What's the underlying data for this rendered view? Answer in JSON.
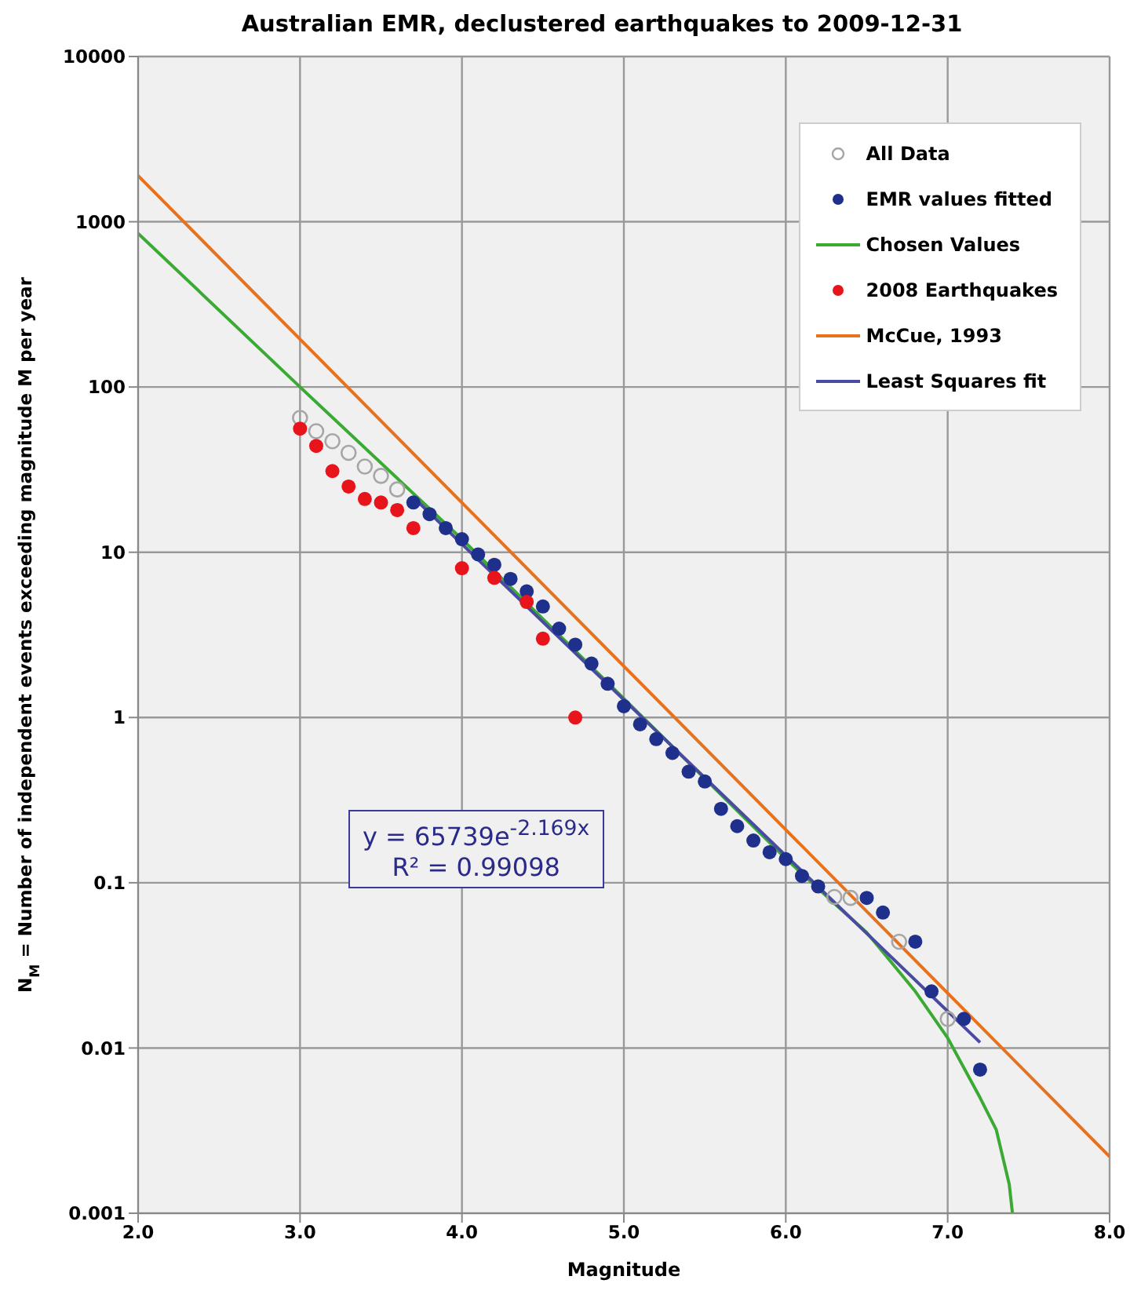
{
  "chart_data": {
    "type": "scatter",
    "title": "Australian EMR, declustered earthquakes to 2009-12-31",
    "xlabel": "Magnitude",
    "ylabel": "N$_{M}$ = Number of independent events exceeding magnitude M per year",
    "log": "y",
    "grid": true,
    "legend": "top right",
    "xlim": [
      2,
      8
    ],
    "xticks": [
      {
        "value": 2,
        "label": "2.0"
      },
      {
        "value": 3,
        "label": "3.0"
      },
      {
        "value": 4,
        "label": "4.0"
      },
      {
        "value": 5,
        "label": "5.0"
      },
      {
        "value": 6,
        "label": "6.0"
      },
      {
        "value": 7,
        "label": "7.0"
      },
      {
        "value": 8,
        "label": "8.0"
      }
    ],
    "ylim": [
      0.001,
      10000
    ],
    "yticks": [
      0.001,
      0.01,
      0.1,
      1,
      10,
      100,
      1000,
      10000
    ],
    "annotations": [
      "y = 65739e$^{-2.169x}$",
      "R² = 0.99098"
    ],
    "series": [
      {
        "name": "All Data",
        "marker": "circle",
        "color": "#a6a6a6",
        "x": [
          3.0,
          3.1,
          3.2,
          3.3,
          3.4,
          3.5,
          3.6,
          6.3,
          6.4,
          6.7,
          7.0
        ],
        "values": [
          65,
          54,
          47,
          40,
          33,
          29,
          24,
          0.082,
          0.081,
          0.044,
          0.015
        ]
      },
      {
        "name": "EMR values fitted",
        "marker": "circle",
        "color": "#1f2f8c",
        "x": [
          3.7,
          3.8,
          3.9,
          4.0,
          4.1,
          4.2,
          4.3,
          4.4,
          4.5,
          4.6,
          4.7,
          4.8,
          4.9,
          5.0,
          5.1,
          5.2,
          5.3,
          5.4,
          5.5,
          5.6,
          5.7,
          5.8,
          5.9,
          6.0,
          6.1,
          6.2,
          6.5,
          6.6,
          6.8,
          6.9,
          7.1,
          7.2
        ],
        "values": [
          20,
          17,
          14,
          12,
          9.7,
          8.4,
          6.9,
          5.8,
          4.7,
          3.45,
          2.76,
          2.12,
          1.6,
          1.17,
          0.91,
          0.74,
          0.61,
          0.47,
          0.41,
          0.28,
          0.22,
          0.18,
          0.153,
          0.139,
          0.11,
          0.095,
          0.081,
          0.066,
          0.044,
          0.022,
          0.015,
          0.0074
        ]
      },
      {
        "name": "Chosen Values",
        "type": "line",
        "color": "#3aaa35",
        "x": [
          2.0,
          3.0,
          4.0,
          5.0,
          6.0,
          6.3,
          6.5,
          6.8,
          7.0,
          7.2,
          7.3,
          7.38,
          7.4
        ],
        "values": [
          850,
          100,
          12,
          1.3,
          0.14,
          0.075,
          0.05,
          0.022,
          0.0115,
          0.005,
          0.0032,
          0.0015,
          0.001
        ]
      },
      {
        "name": "2008 Earthquakes",
        "marker": "circle",
        "color": "#e8141c",
        "x": [
          3.0,
          3.1,
          3.2,
          3.3,
          3.4,
          3.5,
          3.6,
          3.7,
          4.0,
          4.2,
          4.4,
          4.5,
          4.7
        ],
        "values": [
          56,
          44,
          31,
          25,
          21,
          20,
          18,
          14,
          8,
          7,
          5,
          3,
          1
        ]
      },
      {
        "name": "McCue, 1993",
        "type": "line",
        "color": "#e8711c",
        "x": [
          2.0,
          8.0
        ],
        "values": [
          1900,
          0.0022
        ]
      },
      {
        "name": "Least Squares fit",
        "type": "line",
        "color": "#4a4aa0",
        "x": [
          3.7,
          7.2
        ],
        "values": [
          21.5,
          0.0108
        ]
      }
    ]
  }
}
